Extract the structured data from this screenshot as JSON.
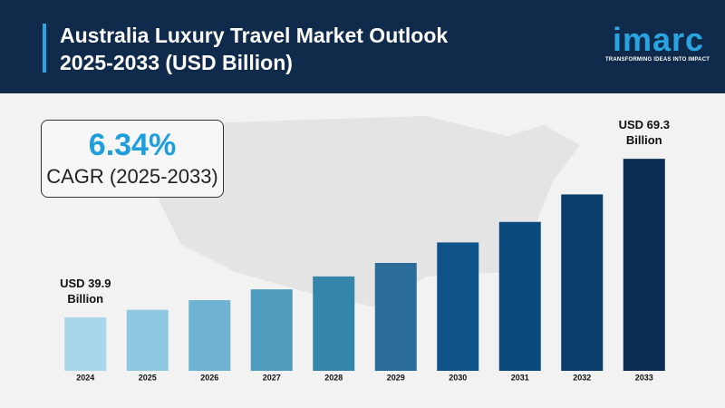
{
  "chart_data": {
    "type": "bar",
    "title": "Australia Luxury Travel Market Outlook 2025-2033 (USD Billion)",
    "logo": "imarc",
    "tagline": "TRANSFORMING IDEAS INTO IMPACT",
    "cagr_value": "6.34%",
    "cagr_label": "CAGR (2025-2033)",
    "categories": [
      "2024",
      "2025",
      "2026",
      "2027",
      "2028",
      "2029",
      "2030",
      "2031",
      "2032",
      "2033"
    ],
    "values": [
      39.9,
      41.3,
      43.1,
      45.1,
      47.5,
      50.0,
      53.8,
      57.6,
      62.7,
      69.3
    ],
    "value_labels": [
      "USD 39.9 Billion",
      null,
      null,
      null,
      null,
      null,
      null,
      null,
      null,
      "USD 69.3 Billion"
    ],
    "colors": [
      "#a9d6e9",
      "#8ec8e0",
      "#6fb3d2",
      "#4f9cbf",
      "#3584a9",
      "#2a6d98",
      "#0e548a",
      "#0b4a7d",
      "#0a3d6b",
      "#0b2c52"
    ],
    "ylim": [
      30,
      70
    ]
  }
}
